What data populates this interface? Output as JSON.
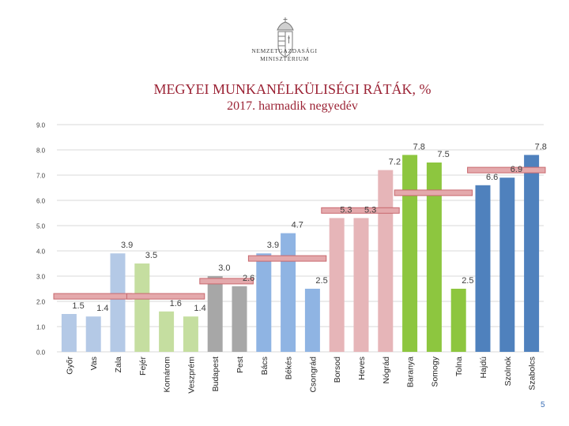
{
  "logo": {
    "line1": "NEMZETGAZDASÁGI",
    "line2": "MINISZTÉRIUM"
  },
  "title": "MEGYEI MUNKANÉLKÜLISÉGI RÁTÁK, %",
  "subtitle": "2017. harmadik negyedév",
  "page_number": "5",
  "colors": {
    "group1": "#b4c9e6",
    "group2": "#c5dea0",
    "group3": "#a7a7a7",
    "group4": "#8fb4e3",
    "group5": "#e6b5b8",
    "group6": "#8dc63f",
    "group7": "#4f81bd",
    "bracket": "#e4a9ac",
    "bracket_border": "#c8686e",
    "grid": "#d9d9d9",
    "axis_text": "#404040"
  },
  "chart_data": {
    "type": "bar",
    "title": "MEGYEI MUNKANÉLKÜLISÉGI RÁTÁK, %",
    "subtitle": "2017. harmadik negyedév",
    "xlabel": "",
    "ylabel": "",
    "ylim": [
      0,
      9
    ],
    "yticks": [
      "0.0",
      "1.0",
      "2.0",
      "3.0",
      "4.0",
      "5.0",
      "6.0",
      "7.0",
      "8.0",
      "9.0"
    ],
    "grid": true,
    "categories": [
      "Győr",
      "Vas",
      "Zala",
      "Fejér",
      "Komárom",
      "Veszprém",
      "Budapest",
      "Pest",
      "Bács",
      "Békés",
      "Csongrád",
      "Borsod",
      "Heves",
      "Nógrád",
      "Baranya",
      "Somogy",
      "Tolna",
      "Hajdú",
      "Szolnok",
      "Szabolcs"
    ],
    "values": [
      1.5,
      1.4,
      3.9,
      3.5,
      1.6,
      1.4,
      3.0,
      2.6,
      3.9,
      4.7,
      2.5,
      5.3,
      5.3,
      7.2,
      7.8,
      7.5,
      2.5,
      6.6,
      6.9,
      7.8
    ],
    "labels": [
      "1.5",
      "1.4",
      "3.9",
      "3.5",
      "1.6",
      "1.4",
      "3.0",
      "2.6",
      "3.9",
      "4.7",
      "2.5",
      "5.3",
      "5.3",
      "7.2",
      "7.8",
      "7.5",
      "2.5",
      "6.6",
      "6.9",
      "7.8"
    ],
    "colors": [
      "#b4c9e6",
      "#b4c9e6",
      "#b4c9e6",
      "#c5dea0",
      "#c5dea0",
      "#c5dea0",
      "#a7a7a7",
      "#a7a7a7",
      "#8fb4e3",
      "#8fb4e3",
      "#8fb4e3",
      "#e6b5b8",
      "#e6b5b8",
      "#e6b5b8",
      "#8dc63f",
      "#8dc63f",
      "#8dc63f",
      "#4f81bd",
      "#4f81bd",
      "#4f81bd"
    ],
    "group_averages": [
      {
        "start": 0,
        "end": 2,
        "value": 2.2
      },
      {
        "start": 3,
        "end": 5,
        "value": 2.2
      },
      {
        "start": 6,
        "end": 7,
        "value": 2.8
      },
      {
        "start": 8,
        "end": 10,
        "value": 3.7
      },
      {
        "start": 11,
        "end": 13,
        "value": 5.6
      },
      {
        "start": 14,
        "end": 16,
        "value": 6.3
      },
      {
        "start": 17,
        "end": 19,
        "value": 7.2
      }
    ]
  }
}
